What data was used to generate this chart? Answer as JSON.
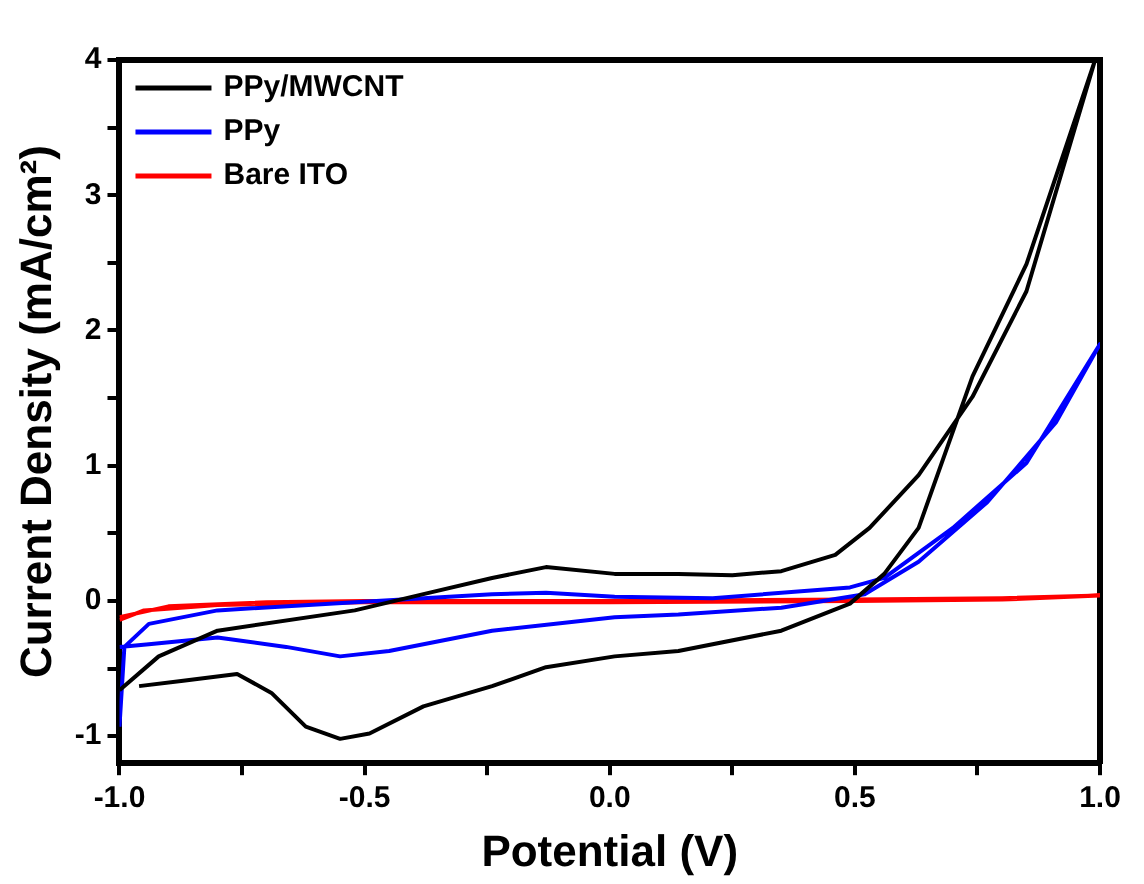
{
  "chart_data": {
    "type": "line",
    "xlabel": "Potential (V)",
    "ylabel": "Current Density (mA/cm²)",
    "xlim": [
      -1.0,
      1.0
    ],
    "ylim": [
      -1.2,
      4.0
    ],
    "xticks": [
      {
        "value": -1.0,
        "label": "-1.0"
      },
      {
        "value": -0.75,
        "label": null
      },
      {
        "value": -0.5,
        "label": "-0.5"
      },
      {
        "value": -0.25,
        "label": null
      },
      {
        "value": 0.0,
        "label": "0.0"
      },
      {
        "value": 0.25,
        "label": null
      },
      {
        "value": 0.5,
        "label": "0.5"
      },
      {
        "value": 0.75,
        "label": null
      },
      {
        "value": 1.0,
        "label": "1.0"
      }
    ],
    "yticks": [
      -1,
      {
        "value": -0.5,
        "label": null
      },
      0,
      {
        "value": 0.5,
        "label": null
      },
      1,
      {
        "value": 1.5,
        "label": null
      },
      2,
      {
        "value": 2.5,
        "label": null
      },
      3,
      {
        "value": 3.5,
        "label": null
      },
      4
    ],
    "legend": "top left",
    "marker": "none",
    "line_style": "solid",
    "series": [
      {
        "name": "PPy/MWCNT",
        "color": "#000000",
        "x": [
          -1.0,
          -0.92,
          -0.8,
          -0.52,
          -0.38,
          -0.24,
          -0.13,
          0.01,
          0.14,
          0.25,
          0.35,
          0.46,
          0.53,
          0.63,
          0.74,
          0.85,
          0.99,
          0.85,
          0.74,
          0.63,
          0.56,
          0.49,
          0.35,
          0.14,
          0.01,
          -0.13,
          -0.24,
          -0.38,
          -0.49,
          -0.55,
          -0.62,
          -0.69,
          -0.76,
          -0.87,
          -0.96
        ],
        "values": [
          -0.66,
          -0.41,
          -0.22,
          -0.07,
          0.05,
          0.17,
          0.25,
          0.2,
          0.2,
          0.19,
          0.22,
          0.34,
          0.54,
          0.93,
          1.51,
          2.29,
          4.0,
          2.49,
          1.66,
          0.54,
          0.2,
          -0.02,
          -0.22,
          -0.37,
          -0.41,
          -0.49,
          -0.63,
          -0.78,
          -0.98,
          -1.02,
          -0.93,
          -0.68,
          -0.54,
          -0.59,
          -0.63
        ]
      },
      {
        "name": "PPy",
        "color": "#0000ff",
        "x": [
          -1.0,
          -0.99,
          -0.94,
          -0.8,
          -0.52,
          -0.24,
          -0.13,
          0.01,
          0.21,
          0.49,
          0.56,
          0.7,
          0.85,
          1.0,
          0.91,
          0.77,
          0.63,
          0.52,
          0.35,
          0.14,
          0.01,
          -0.24,
          -0.45,
          -0.55,
          -0.66,
          -0.8,
          -0.94,
          -1.0
        ],
        "values": [
          -0.93,
          -0.34,
          -0.17,
          -0.07,
          -0.01,
          0.05,
          0.06,
          0.03,
          0.02,
          0.1,
          0.17,
          0.54,
          1.02,
          1.9,
          1.32,
          0.73,
          0.29,
          0.05,
          -0.05,
          -0.1,
          -0.12,
          -0.22,
          -0.37,
          -0.41,
          -0.34,
          -0.27,
          -0.32,
          -0.34
        ]
      },
      {
        "name": "Bare ITO",
        "color": "#ff0000",
        "x": [
          -1.0,
          -0.9,
          -0.7,
          -0.5,
          0.0,
          0.5,
          0.8,
          1.0,
          0.8,
          0.5,
          0.0,
          -0.5,
          -0.8,
          -0.95,
          -1.0
        ],
        "values": [
          -0.12,
          -0.04,
          -0.01,
          0.0,
          0.0,
          0.01,
          0.02,
          0.04,
          0.01,
          0.0,
          -0.01,
          -0.01,
          -0.03,
          -0.07,
          -0.14
        ]
      }
    ]
  }
}
